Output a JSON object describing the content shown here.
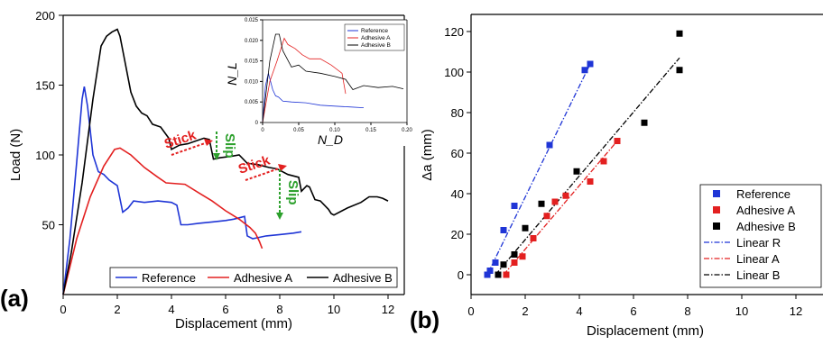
{
  "colors": {
    "reference": "#1f35d6",
    "adhesive_a": "#e32020",
    "adhesive_b": "#000000",
    "annotation_stick": "#e32020",
    "annotation_slip": "#2ca02c"
  },
  "chart_data": [
    {
      "panel": "(a)",
      "type": "line",
      "xlabel": "Displacement (mm)",
      "ylabel": "Load (N)",
      "xlim": [
        0,
        13
      ],
      "ylim": [
        0,
        200
      ],
      "xticks": [
        "0",
        "2",
        "4",
        "6",
        "8",
        "10",
        "12"
      ],
      "yticks": [
        "50",
        "100",
        "150",
        "200"
      ],
      "legend_position": "bottom",
      "annotations": {
        "stick1": "Stick",
        "slip1": "Slip",
        "stick2": "Stick",
        "slip2": "Slip"
      },
      "series": [
        {
          "name": "Reference",
          "color": "#1f35d6",
          "points": [
            [
              0,
              0
            ],
            [
              0.25,
              40
            ],
            [
              0.5,
              95
            ],
            [
              0.7,
              140
            ],
            [
              0.78,
              149
            ],
            [
              0.9,
              135
            ],
            [
              1.1,
              100
            ],
            [
              1.3,
              88
            ],
            [
              1.5,
              86
            ],
            [
              1.7,
              82
            ],
            [
              2.0,
              78
            ],
            [
              2.2,
              59
            ],
            [
              2.4,
              62
            ],
            [
              2.6,
              67
            ],
            [
              3.0,
              66
            ],
            [
              3.5,
              67
            ],
            [
              4.0,
              66
            ],
            [
              4.2,
              64
            ],
            [
              4.35,
              50
            ],
            [
              4.6,
              50
            ],
            [
              5.0,
              51
            ],
            [
              5.5,
              52
            ],
            [
              6.0,
              53
            ],
            [
              6.3,
              54
            ],
            [
              6.5,
              55
            ],
            [
              6.7,
              56
            ],
            [
              6.8,
              42
            ],
            [
              7.0,
              40
            ],
            [
              7.5,
              42
            ],
            [
              8.0,
              43
            ],
            [
              8.5,
              44
            ],
            [
              8.8,
              45
            ]
          ]
        },
        {
          "name": "Adhesive A",
          "color": "#e32020",
          "points": [
            [
              0,
              0
            ],
            [
              0.5,
              40
            ],
            [
              1.0,
              70
            ],
            [
              1.5,
              92
            ],
            [
              1.9,
              104
            ],
            [
              2.1,
              105
            ],
            [
              2.5,
              100
            ],
            [
              3.0,
              91
            ],
            [
              3.5,
              84
            ],
            [
              3.8,
              80
            ],
            [
              4.5,
              79
            ],
            [
              5.0,
              73
            ],
            [
              5.5,
              67
            ],
            [
              6.0,
              60
            ],
            [
              6.5,
              54
            ],
            [
              6.9,
              48
            ],
            [
              7.1,
              44
            ],
            [
              7.25,
              38
            ],
            [
              7.35,
              33
            ]
          ]
        },
        {
          "name": "Adhesive B",
          "color": "#000000",
          "points": [
            [
              0,
              0
            ],
            [
              0.3,
              30
            ],
            [
              0.7,
              80
            ],
            [
              1.1,
              140
            ],
            [
              1.4,
              178
            ],
            [
              1.6,
              185
            ],
            [
              1.8,
              188
            ],
            [
              2.0,
              190
            ],
            [
              2.1,
              185
            ],
            [
              2.25,
              170
            ],
            [
              2.5,
              145
            ],
            [
              2.7,
              135
            ],
            [
              2.9,
              130
            ],
            [
              3.1,
              128
            ],
            [
              3.3,
              122
            ],
            [
              3.6,
              120
            ],
            [
              3.9,
              112
            ],
            [
              4.0,
              104
            ],
            [
              4.3,
              107
            ],
            [
              4.6,
              108
            ],
            [
              4.9,
              110
            ],
            [
              5.2,
              112
            ],
            [
              5.4,
              111
            ],
            [
              5.55,
              97
            ],
            [
              5.8,
              98
            ],
            [
              6.2,
              99
            ],
            [
              6.5,
              100
            ],
            [
              6.8,
              94
            ],
            [
              7.2,
              93
            ],
            [
              7.6,
              91
            ],
            [
              7.9,
              90
            ],
            [
              8.1,
              88
            ],
            [
              8.3,
              86
            ],
            [
              8.7,
              84
            ],
            [
              8.8,
              74
            ],
            [
              9.0,
              78
            ],
            [
              9.1,
              77
            ],
            [
              9.3,
              68
            ],
            [
              9.5,
              67
            ],
            [
              9.8,
              61
            ],
            [
              9.9,
              58
            ],
            [
              10.0,
              57
            ],
            [
              10.5,
              62
            ],
            [
              11.0,
              66
            ],
            [
              11.3,
              70
            ],
            [
              11.6,
              70
            ],
            [
              11.8,
              69
            ],
            [
              12.0,
              67
            ]
          ]
        }
      ],
      "inset": {
        "xlabel": "N_D",
        "ylabel": "N_L",
        "xlim": [
          0,
          0.2
        ],
        "ylim": [
          0,
          0.025
        ],
        "xticks": [
          "0",
          "0.05",
          "0.10",
          "0.15",
          "0.20"
        ],
        "yticks": [
          "0",
          "0.005",
          "0.010",
          "0.015",
          "0.020",
          "0.025"
        ],
        "legend_position": "top-right",
        "series": [
          {
            "name": "Reference",
            "color": "#1f35d6",
            "points": [
              [
                0,
                0
              ],
              [
                0.004,
                0.009
              ],
              [
                0.008,
                0.012
              ],
              [
                0.011,
                0.01
              ],
              [
                0.014,
                0.008
              ],
              [
                0.018,
                0.0065
              ],
              [
                0.022,
                0.0062
              ],
              [
                0.028,
                0.0052
              ],
              [
                0.04,
                0.005
              ],
              [
                0.06,
                0.0048
              ],
              [
                0.08,
                0.0042
              ],
              [
                0.1,
                0.004
              ],
              [
                0.12,
                0.0038
              ],
              [
                0.14,
                0.0036
              ]
            ]
          },
          {
            "name": "Adhesive A",
            "color": "#e32020",
            "points": [
              [
                0,
                0
              ],
              [
                0.01,
                0.01
              ],
              [
                0.02,
                0.015
              ],
              [
                0.03,
                0.0205
              ],
              [
                0.035,
                0.019
              ],
              [
                0.045,
                0.018
              ],
              [
                0.055,
                0.0165
              ],
              [
                0.065,
                0.0155
              ],
              [
                0.08,
                0.0155
              ],
              [
                0.095,
                0.014
              ],
              [
                0.11,
                0.012
              ],
              [
                0.115,
                0.007
              ]
            ]
          },
          {
            "name": "Adhesive B",
            "color": "#000000",
            "points": [
              [
                0,
                0
              ],
              [
                0.01,
                0.015
              ],
              [
                0.018,
                0.0215
              ],
              [
                0.023,
                0.0215
              ],
              [
                0.028,
                0.0175
              ],
              [
                0.04,
                0.0135
              ],
              [
                0.05,
                0.014
              ],
              [
                0.06,
                0.0125
              ],
              [
                0.08,
                0.012
              ],
              [
                0.1,
                0.0112
              ],
              [
                0.115,
                0.0105
              ],
              [
                0.125,
                0.008
              ],
              [
                0.14,
                0.009
              ],
              [
                0.16,
                0.0085
              ],
              [
                0.18,
                0.0088
              ],
              [
                0.195,
                0.0082
              ]
            ]
          }
        ]
      }
    },
    {
      "panel": "(b)",
      "type": "scatter",
      "xlabel": "Displacement (mm)",
      "ylabel": "Δa (mm)",
      "xlim": [
        0,
        14
      ],
      "ylim": [
        -10,
        130
      ],
      "xticks": [
        "0",
        "2",
        "4",
        "6",
        "8",
        "10",
        "12"
      ],
      "yticks": [
        "0",
        "20",
        "40",
        "60",
        "80",
        "100",
        "120"
      ],
      "legend_position": "bottom-right",
      "series": [
        {
          "name": "Reference",
          "kind": "points",
          "color": "#1f35d6",
          "points": [
            [
              0.6,
              0
            ],
            [
              0.7,
              2
            ],
            [
              0.9,
              6
            ],
            [
              1.2,
              22
            ],
            [
              1.6,
              34
            ],
            [
              2.9,
              64
            ],
            [
              4.2,
              101
            ],
            [
              4.4,
              104
            ]
          ]
        },
        {
          "name": "Adhesive A",
          "kind": "points",
          "color": "#e32020",
          "points": [
            [
              1.3,
              0
            ],
            [
              1.6,
              6
            ],
            [
              1.9,
              9
            ],
            [
              2.3,
              18
            ],
            [
              2.8,
              29
            ],
            [
              3.1,
              36
            ],
            [
              3.5,
              39
            ],
            [
              4.4,
              46
            ],
            [
              4.9,
              56
            ],
            [
              5.4,
              66
            ]
          ]
        },
        {
          "name": "Adhesive B",
          "kind": "points",
          "color": "#000000",
          "points": [
            [
              1.0,
              0
            ],
            [
              1.2,
              5
            ],
            [
              1.6,
              10
            ],
            [
              2.0,
              23
            ],
            [
              2.6,
              35
            ],
            [
              3.9,
              51
            ],
            [
              6.4,
              75
            ],
            [
              7.7,
              101
            ],
            [
              7.7,
              119
            ]
          ]
        },
        {
          "name": "Linear R",
          "kind": "line",
          "color": "#1f35d6",
          "points": [
            [
              0.6,
              0
            ],
            [
              4.4,
              104
            ]
          ]
        },
        {
          "name": "Linear A",
          "kind": "line",
          "color": "#e32020",
          "points": [
            [
              1.2,
              0
            ],
            [
              5.4,
              66
            ]
          ]
        },
        {
          "name": "Linear B",
          "kind": "line",
          "color": "#000000",
          "points": [
            [
              0.9,
              0
            ],
            [
              7.7,
              107
            ]
          ]
        }
      ]
    }
  ]
}
